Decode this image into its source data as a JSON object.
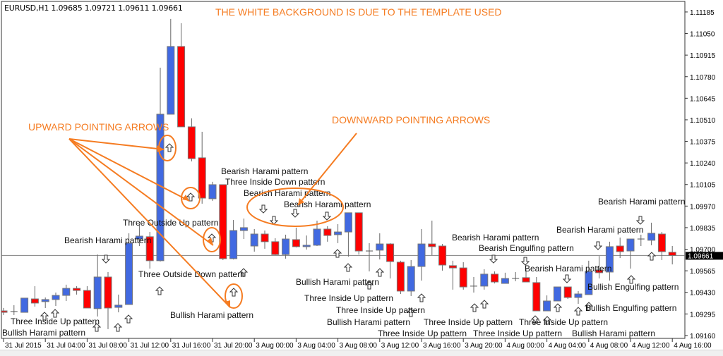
{
  "window": {
    "symbol_info": "EURUSD,H1  1.09685 1.09721 1.09611 1.09661"
  },
  "annotations": {
    "title": "THE WHITE BACKGROUND IS DUE TO THE TEMPLATE USED",
    "upward_label": "UPWARD POINTING  ARROWS",
    "downward_label": "DOWNWARD POINTING ARROWS"
  },
  "colors": {
    "bull": "#4169e1",
    "bear": "#ff0000",
    "annotation": "#f57c22",
    "price_line": "#808080",
    "background": "#ffffff"
  },
  "pattern_labels": [
    "Bearish Harami pattern",
    "Three Inside Down pattern",
    "Bearish Harami pattern",
    "Bearish Harami pattern",
    "Three Outside Up pattern",
    "Bearish Harami pattern",
    "Three Outside Down pattern",
    "Bullish Harami pattern",
    "Three Inside Up pattern",
    "Bullish Harami pattern",
    "Bullish Harami pattern",
    "Three Inside Up pattern",
    "Three Inside Up pattern",
    "Bullish Harami pattern",
    "Three Inside Up pattern",
    "Three Inside Up pattern",
    "Bearish Harami pattern",
    "Bearish Engulfing pattern",
    "Bearish Harami pattern",
    "Bearish Harami pattern",
    "Bearish Harami pattern",
    "Bullish Engulfing pattern",
    "Bullish Engulfing pattern",
    "Three Inside Up pattern",
    "Three Inside Up pattern",
    "Bullish Harami pattern"
  ],
  "chart_data": {
    "type": "candlestick",
    "symbol": "EURUSD",
    "timeframe": "H1",
    "ylim": [
      1.09142,
      1.11251
    ],
    "grid": false,
    "current_price": "1.09661",
    "y_tick_labels": [
      "1.11185",
      "1.11050",
      "1.10915",
      "1.10780",
      "1.10645",
      "1.10510",
      "1.10375",
      "1.10240",
      "1.10105",
      "1.09970",
      "1.09835",
      "1.09700",
      "1.09565",
      "1.09430",
      "1.09295",
      "1.09160"
    ],
    "x_tick_labels": [
      "31 Jul 2015",
      "31 Jul 04:00",
      "31 Jul 08:00",
      "31 Jul 12:00",
      "31 Jul 16:00",
      "31 Jul 20:00",
      "3 Aug 00:00",
      "3 Aug 04:00",
      "3 Aug 08:00",
      "3 Aug 12:00",
      "3 Aug 16:00",
      "3 Aug 20:00",
      "4 Aug 00:00",
      "4 Aug 04:00",
      "4 Aug 08:00",
      "4 Aug 12:00",
      "4 Aug 16:00"
    ],
    "candle_fields": [
      "time",
      "open",
      "high",
      "low",
      "close"
    ],
    "candles": [
      [
        "31 Jul 00:00",
        1.09314,
        1.09332,
        1.09288,
        1.09305
      ],
      [
        "31 Jul 01:00",
        1.0931,
        1.0935,
        1.09288,
        1.0931
      ],
      [
        "31 Jul 02:00",
        1.09305,
        1.09394,
        1.09305,
        1.09394
      ],
      [
        "31 Jul 03:00",
        1.09389,
        1.09469,
        1.09341,
        1.09363
      ],
      [
        "31 Jul 04:00",
        1.09372,
        1.09398,
        1.09332,
        1.09385
      ],
      [
        "31 Jul 05:00",
        1.09385,
        1.09429,
        1.09345,
        1.09411
      ],
      [
        "31 Jul 06:00",
        1.09411,
        1.09478,
        1.09376,
        1.09455
      ],
      [
        "31 Jul 07:00",
        1.09455,
        1.09469,
        1.09416,
        1.09442
      ],
      [
        "31 Jul 08:00",
        1.09442,
        1.09469,
        1.09332,
        1.09332
      ],
      [
        "31 Jul 09:00",
        1.09328,
        1.09667,
        1.09279,
        1.09526
      ],
      [
        "31 Jul 10:00",
        1.09526,
        1.09557,
        1.092,
        1.09332
      ],
      [
        "31 Jul 11:00",
        1.09336,
        1.09416,
        1.09305,
        1.0935
      ],
      [
        "31 Jul 12:00",
        1.09354,
        1.098,
        1.09354,
        1.09738
      ],
      [
        "31 Jul 13:00",
        1.09764,
        1.09857,
        1.0972,
        1.09782
      ],
      [
        "31 Jul 14:00",
        1.09778,
        1.09808,
        1.09579,
        1.09628
      ],
      [
        "31 Jul 15:00",
        1.09628,
        1.10836,
        1.09623,
        1.10545
      ],
      [
        "31 Jul 16:00",
        1.10545,
        1.11141,
        1.10545,
        1.10969
      ],
      [
        "31 Jul 17:00",
        1.10969,
        1.11114,
        1.10466,
        1.10466
      ],
      [
        "31 Jul 18:00",
        1.10466,
        1.10519,
        1.1025,
        1.10267
      ],
      [
        "31 Jul 19:00",
        1.10272,
        1.10435,
        1.09985,
        1.1002
      ],
      [
        "31 Jul 20:00",
        1.10016,
        1.10122,
        1.10003,
        1.10104
      ],
      [
        "31 Jul 21:00",
        1.10104,
        1.10104,
        1.09632,
        1.09641
      ],
      [
        "31 Jul 22:00",
        1.09641,
        1.09883,
        1.09636,
        1.09817
      ],
      [
        "31 Jul 23:00",
        1.09817,
        1.09892,
        1.09764,
        1.09835
      ],
      [
        "3 Aug 00:00",
        1.0972,
        1.09826,
        1.09685,
        1.09795
      ],
      [
        "3 Aug 01:00",
        1.09795,
        1.09817,
        1.09703,
        1.09747
      ],
      [
        "3 Aug 02:00",
        1.09747,
        1.09769,
        1.09663,
        1.09667
      ],
      [
        "3 Aug 03:00",
        1.09667,
        1.09791,
        1.09641,
        1.09764
      ],
      [
        "3 Aug 04:00",
        1.0976,
        1.09835,
        1.09711,
        1.09716
      ],
      [
        "3 Aug 05:00",
        1.09716,
        1.09786,
        1.09698,
        1.09725
      ],
      [
        "3 Aug 06:00",
        1.09725,
        1.09879,
        1.0972,
        1.09826
      ],
      [
        "3 Aug 07:00",
        1.09826,
        1.09844,
        1.09747,
        1.09786
      ],
      [
        "3 Aug 08:00",
        1.09791,
        1.09857,
        1.09738,
        1.09808
      ],
      [
        "3 Aug 09:00",
        1.09808,
        1.09928,
        1.09654,
        1.09928
      ],
      [
        "3 Aug 10:00",
        1.09928,
        1.09928,
        1.09667,
        1.09689
      ],
      [
        "3 Aug 11:00",
        1.09689,
        1.09738,
        1.09561,
        1.09689
      ],
      [
        "3 Aug 12:00",
        1.09694,
        1.098,
        1.09636,
        1.09733
      ],
      [
        "3 Aug 13:00",
        1.09733,
        1.09738,
        1.09517,
        1.09623
      ],
      [
        "3 Aug 14:00",
        1.09619,
        1.09628,
        1.0942,
        1.09438
      ],
      [
        "3 Aug 15:00",
        1.09438,
        1.09632,
        1.09407,
        1.09592
      ],
      [
        "3 Aug 16:00",
        1.09592,
        1.09826,
        1.09504,
        1.09733
      ],
      [
        "3 Aug 17:00",
        1.09733,
        1.09879,
        1.09663,
        1.09716
      ],
      [
        "3 Aug 18:00",
        1.0972,
        1.09733,
        1.09566,
        1.09601
      ],
      [
        "3 Aug 19:00",
        1.09597,
        1.09628,
        1.09447,
        1.09583
      ],
      [
        "3 Aug 20:00",
        1.09583,
        1.09619,
        1.09447,
        1.09464
      ],
      [
        "3 Aug 21:00",
        1.09469,
        1.09526,
        1.09429,
        1.09469
      ],
      [
        "3 Aug 22:00",
        1.09469,
        1.09575,
        1.09447,
        1.09544
      ],
      [
        "3 Aug 23:00",
        1.09544,
        1.09561,
        1.09486,
        1.09495
      ],
      [
        "4 Aug 00:00",
        1.09486,
        1.09553,
        1.09486,
        1.09517
      ],
      [
        "4 Aug 01:00",
        1.09517,
        1.09557,
        1.095,
        1.09517
      ],
      [
        "4 Aug 02:00",
        1.09522,
        1.09575,
        1.09495,
        1.09495
      ],
      [
        "4 Aug 03:00",
        1.09491,
        1.09526,
        1.09314,
        1.09314
      ],
      [
        "4 Aug 04:00",
        1.09314,
        1.09411,
        1.09314,
        1.09376
      ],
      [
        "4 Aug 05:00",
        1.09376,
        1.09464,
        1.09376,
        1.09464
      ],
      [
        "4 Aug 06:00",
        1.09464,
        1.09464,
        1.09389,
        1.09398
      ],
      [
        "4 Aug 07:00",
        1.09398,
        1.09438,
        1.09358,
        1.0942
      ],
      [
        "4 Aug 08:00",
        1.09416,
        1.09628,
        1.09416,
        1.09561
      ],
      [
        "4 Aug 09:00",
        1.0957,
        1.09658,
        1.09517,
        1.09553
      ],
      [
        "4 Aug 10:00",
        1.09557,
        1.09747,
        1.09504,
        1.09716
      ],
      [
        "4 Aug 11:00",
        1.0972,
        1.09773,
        1.09645,
        1.09685
      ],
      [
        "4 Aug 12:00",
        1.09689,
        1.09764,
        1.09579,
        1.09764
      ],
      [
        "4 Aug 13:00",
        1.09764,
        1.09791,
        1.0972,
        1.09764
      ],
      [
        "4 Aug 14:00",
        1.09756,
        1.09866,
        1.09725,
        1.098
      ],
      [
        "4 Aug 15:00",
        1.09795,
        1.09808,
        1.09632,
        1.09685
      ],
      [
        "4 Aug 16:00",
        1.09681,
        1.0972,
        1.09605,
        1.09661
      ]
    ]
  }
}
